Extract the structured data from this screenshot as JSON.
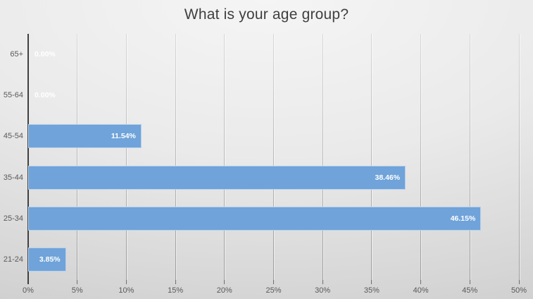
{
  "title": "What is your age group?",
  "chart_data": {
    "type": "bar",
    "orientation": "horizontal",
    "title": "What is your age group?",
    "categories": [
      "65+",
      "55-64",
      "45-54",
      "35-44",
      "25-34",
      "21-24"
    ],
    "values": [
      0.0,
      0.0,
      11.54,
      38.46,
      46.15,
      3.85
    ],
    "value_labels": [
      "0.00%",
      "0.00%",
      "11.54%",
      "38.46%",
      "46.15%",
      "3.85%"
    ],
    "x_ticks": [
      "0%",
      "5%",
      "10%",
      "15%",
      "20%",
      "25%",
      "30%",
      "35%",
      "40%",
      "45%",
      "50%"
    ],
    "xlim": [
      0,
      50
    ],
    "xlabel": "",
    "ylabel": "",
    "grid": true,
    "legend": false,
    "colors": {
      "bar": "#6FA3D9",
      "bar_border": "rgba(255,255,255,0.5)",
      "value_label": "#FFFFFF",
      "axis_text": "#595959",
      "title_text": "#3F3F3F",
      "axis_line": "#404040",
      "gridline": "#9A9A9A"
    }
  }
}
